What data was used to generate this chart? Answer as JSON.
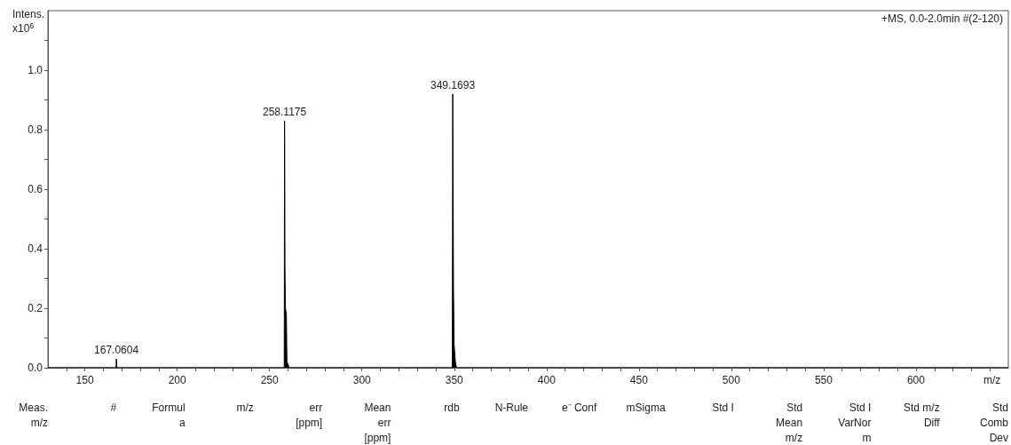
{
  "chart_data": {
    "type": "area",
    "subtitle": "+MS, 0.0-2.0min #(2-120)",
    "xlabel": "m/z",
    "ylabel": "Intens.\nx10$^{6}$",
    "x": [
      130,
      166.9,
      167.06,
      167.3,
      257.95,
      258.1175,
      258.2,
      258.35,
      258.6,
      259.1,
      259.4,
      260.1,
      260.5,
      348.95,
      349.1693,
      349.3,
      349.45,
      349.6,
      349.9,
      350.2,
      350.6,
      351.2,
      650
    ],
    "series": [
      {
        "color": "#000000",
        "values": [
          0,
          0,
          0.03,
          0,
          0,
          0.83,
          0.75,
          0.34,
          0.2,
          0.18,
          0.02,
          0.01,
          0,
          0,
          0.92,
          0.72,
          0.51,
          0.27,
          0.08,
          0.08,
          0.02,
          0,
          0
        ]
      }
    ],
    "xlim": [
      130,
      650
    ],
    "xticks": [
      {
        "value": 140,
        "label": null
      },
      150,
      {
        "value": 160,
        "label": null
      },
      {
        "value": 170,
        "label": null
      },
      {
        "value": 180,
        "label": null
      },
      {
        "value": 190,
        "label": null
      },
      200,
      {
        "value": 210,
        "label": null
      },
      {
        "value": 220,
        "label": null
      },
      {
        "value": 230,
        "label": null
      },
      {
        "value": 240,
        "label": null
      },
      250,
      {
        "value": 260,
        "label": null
      },
      {
        "value": 270,
        "label": null
      },
      {
        "value": 280,
        "label": null
      },
      {
        "value": 290,
        "label": null
      },
      300,
      {
        "value": 310,
        "label": null
      },
      {
        "value": 320,
        "label": null
      },
      {
        "value": 330,
        "label": null
      },
      {
        "value": 340,
        "label": null
      },
      350,
      {
        "value": 360,
        "label": null
      },
      {
        "value": 370,
        "label": null
      },
      {
        "value": 380,
        "label": null
      },
      {
        "value": 390,
        "label": null
      },
      400,
      {
        "value": 410,
        "label": null
      },
      {
        "value": 420,
        "label": null
      },
      {
        "value": 430,
        "label": null
      },
      {
        "value": 440,
        "label": null
      },
      450,
      {
        "value": 460,
        "label": null
      },
      {
        "value": 470,
        "label": null
      },
      {
        "value": 480,
        "label": null
      },
      {
        "value": 490,
        "label": null
      },
      500,
      {
        "value": 510,
        "label": null
      },
      {
        "value": 520,
        "label": null
      },
      {
        "value": 530,
        "label": null
      },
      {
        "value": 540,
        "label": null
      },
      550,
      {
        "value": 560,
        "label": null
      },
      {
        "value": 570,
        "label": null
      },
      {
        "value": 580,
        "label": null
      },
      {
        "value": 590,
        "label": null
      },
      600,
      {
        "value": 610,
        "label": null
      },
      {
        "value": 620,
        "label": null
      },
      {
        "value": 630,
        "label": null
      },
      {
        "value": 640,
        "label": null
      }
    ],
    "ylim": [
      0,
      1.2
    ],
    "yticks": [
      {
        "value": 0,
        "label": "0.0"
      },
      {
        "value": 0.1,
        "label": null
      },
      0.2,
      {
        "value": 0.3,
        "label": null
      },
      0.4,
      {
        "value": 0.5,
        "label": null
      },
      0.6,
      {
        "value": 0.7,
        "label": null
      },
      0.8,
      {
        "value": 0.9,
        "label": null
      },
      {
        "value": 1,
        "label": "1.0"
      },
      {
        "value": 1.1,
        "label": null
      }
    ],
    "annotations": [
      {
        "text": "167.0604",
        "x": 167.06,
        "y": 0.03
      },
      {
        "text": "258.1175",
        "x": 258.1175,
        "y": 0.83
      },
      {
        "text": "349.1693",
        "x": 349.1693,
        "y": 0.92
      },
      "Meas.\nm/z",
      "#",
      "Formul\na",
      "m/z",
      "err\n[ppm]",
      "Mean\nerr\n[ppm]",
      "rdb",
      "N-Rule",
      "e⁻ Conf",
      "mSigma",
      "Std I",
      "Std\nMean\nm/z",
      "Std I\nVarNor\nm",
      "Std m/z\nDiff",
      "Std\nComb\nDev"
    ]
  }
}
